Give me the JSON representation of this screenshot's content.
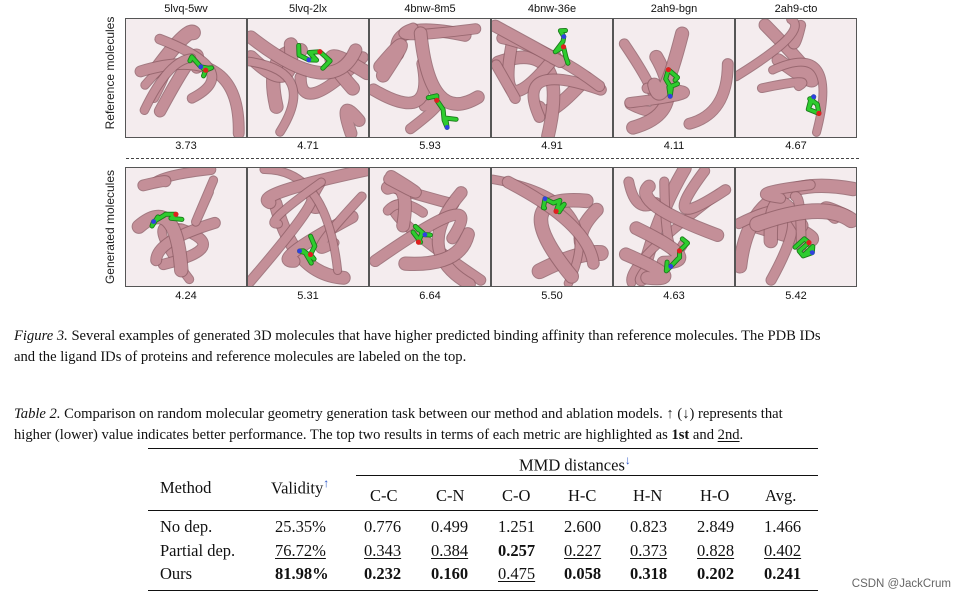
{
  "figure": {
    "row_labels": [
      "Reference molecules",
      "Generated molecules"
    ],
    "columns": [
      {
        "id": "5lvq-5wv",
        "ref_score": "3.73",
        "gen_score": "4.24"
      },
      {
        "id": "5lvq-2lx",
        "ref_score": "4.71",
        "gen_score": "5.31"
      },
      {
        "id": "4bnw-8m5",
        "ref_score": "5.93",
        "gen_score": "6.64"
      },
      {
        "id": "4bnw-36e",
        "ref_score": "4.91",
        "gen_score": "5.50"
      },
      {
        "id": "2ah9-bgn",
        "ref_score": "4.11",
        "gen_score": "4.63"
      },
      {
        "id": "2ah9-cto",
        "ref_score": "4.67",
        "gen_score": "5.42"
      }
    ],
    "caption_label": "Figure 3.",
    "caption_text_1": "Several examples of generated 3D molecules that have higher predicted binding affinity than reference molecules. The PDB IDs",
    "caption_text_2": "and the ligand IDs of proteins and reference molecules are labeled on the top."
  },
  "table": {
    "caption_label": "Table 2.",
    "caption_text_1": "Comparison on random molecular geometry generation task between our method and ablation models. ↑ (↓) represents that",
    "caption_text_2a": "higher (lower) value indicates better performance. The top two results in terms of each metric are highlighted as ",
    "first_label": "1st",
    "and_word": " and ",
    "second_label": "2nd",
    "period": ".",
    "headers": {
      "method": "Method",
      "validity": "Validity",
      "validity_arrow": "↑",
      "mmd": "MMD distances",
      "mmd_arrow": "↓",
      "cols": [
        "C-C",
        "C-N",
        "C-O",
        "H-C",
        "H-N",
        "H-O",
        "Avg."
      ]
    },
    "rows": [
      {
        "method": "No dep.",
        "validity": "25.35%",
        "values": [
          "0.776",
          "0.499",
          "1.251",
          "2.600",
          "0.823",
          "2.849",
          "1.466"
        ]
      },
      {
        "method": "Partial dep.",
        "validity": "76.72%",
        "values": [
          "0.343",
          "0.384",
          "0.257",
          "0.227",
          "0.373",
          "0.828",
          "0.402"
        ]
      },
      {
        "method": "Ours",
        "validity": "81.98%",
        "values": [
          "0.232",
          "0.160",
          "0.475",
          "0.058",
          "0.318",
          "0.202",
          "0.241"
        ]
      }
    ]
  },
  "watermark": "CSDN @JackCrum",
  "colors": {
    "protein": "#c48f98",
    "protein_dark": "#8f5e67",
    "ligand": "#2ecc2e",
    "oxygen": "#e02020",
    "nitrogen": "#3040e0"
  }
}
